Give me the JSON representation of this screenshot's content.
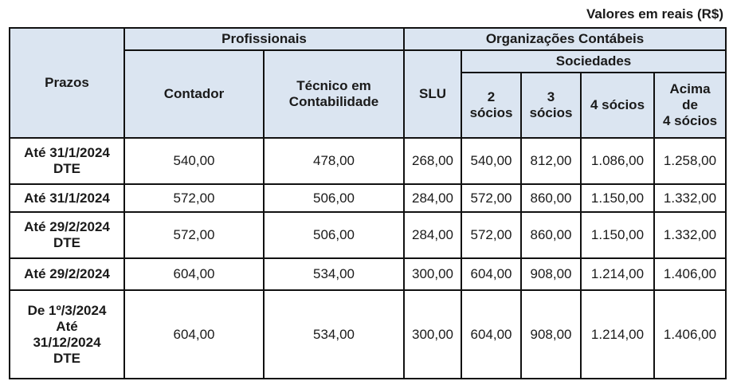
{
  "note": "Valores em reais (R$)",
  "header": {
    "prazos": "Prazos",
    "profissionais": "Profissionais",
    "contador": "Contador",
    "tecnico_l1": "Técnico em",
    "tecnico_l2": "Contabilidade",
    "organizacoes": "Organizações Contábeis",
    "slu": "SLU",
    "sociedades": "Sociedades",
    "s2_l1": "2",
    "s2_l2": "sócios",
    "s3_l1": "3",
    "s3_l2": "sócios",
    "s4": "4 sócios",
    "acima_l1": "Acima",
    "acima_l2": "de",
    "acima_l3": "4 sócios"
  },
  "rows": [
    {
      "prazo": [
        "Até 31/1/2024",
        "DTE"
      ],
      "values": [
        "540,00",
        "478,00",
        "268,00",
        "540,00",
        "812,00",
        "1.086,00",
        "1.258,00"
      ]
    },
    {
      "prazo": [
        "Até 31/1/2024"
      ],
      "values": [
        "572,00",
        "506,00",
        "284,00",
        "572,00",
        "860,00",
        "1.150,00",
        "1.332,00"
      ]
    },
    {
      "prazo": [
        "Até 29/2/2024",
        "DTE"
      ],
      "values": [
        "572,00",
        "506,00",
        "284,00",
        "572,00",
        "860,00",
        "1.150,00",
        "1.332,00"
      ]
    },
    {
      "prazo": [
        "Até 29/2/2024"
      ],
      "values": [
        "604,00",
        "534,00",
        "300,00",
        "604,00",
        "908,00",
        "1.214,00",
        "1.406,00"
      ]
    },
    {
      "prazo": [
        "De 1º/3/2024",
        "Até",
        "31/12/2024",
        "DTE"
      ],
      "values": [
        "604,00",
        "534,00",
        "300,00",
        "604,00",
        "908,00",
        "1.214,00",
        "1.406,00"
      ]
    }
  ]
}
